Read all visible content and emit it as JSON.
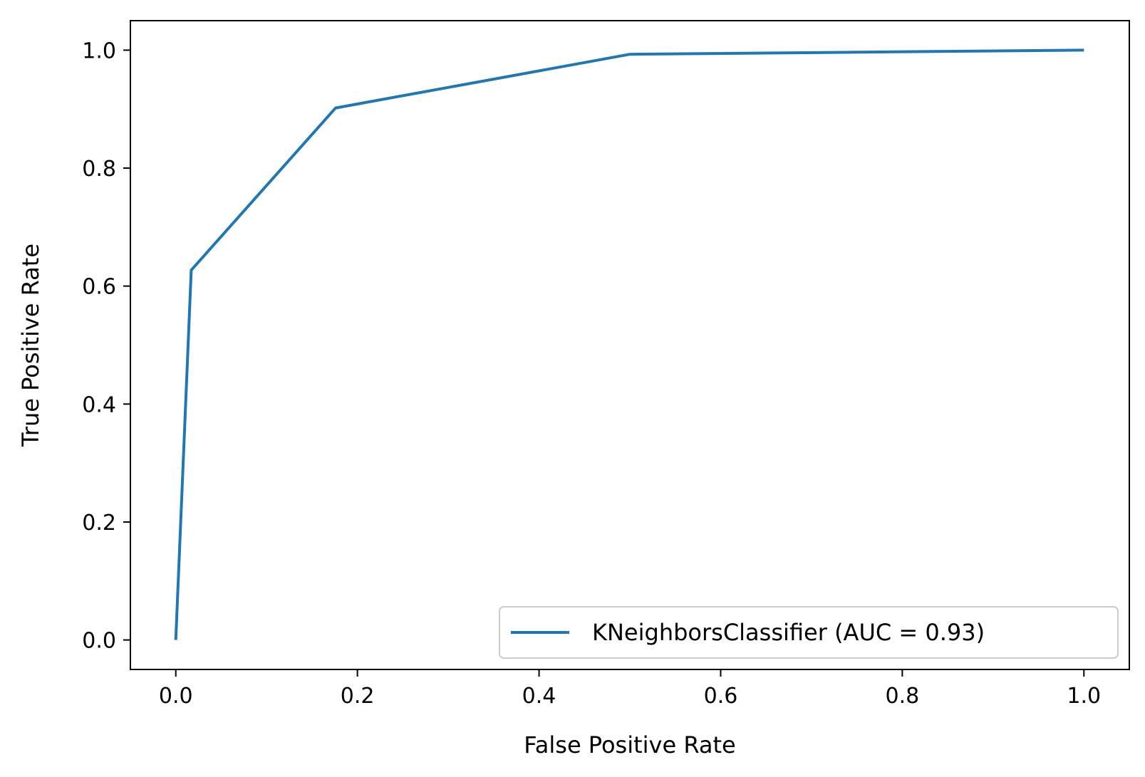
{
  "chart_data": {
    "type": "line",
    "title": "",
    "xlabel": "False Positive Rate",
    "ylabel": "True Positive Rate",
    "xlim": [
      -0.05,
      1.05
    ],
    "ylim": [
      -0.05,
      1.05
    ],
    "xticks": [
      0.0,
      0.2,
      0.4,
      0.6,
      0.8,
      1.0
    ],
    "xtick_labels": [
      "0.0",
      "0.2",
      "0.4",
      "0.6",
      "0.8",
      "1.0"
    ],
    "yticks": [
      0.0,
      0.2,
      0.4,
      0.6,
      0.8,
      1.0
    ],
    "ytick_labels": [
      "0.0",
      "0.2",
      "0.4",
      "0.6",
      "0.8",
      "1.0"
    ],
    "grid": false,
    "legend_position": "lower-right",
    "series": [
      {
        "name": "KNeighborsClassifier (AUC = 0.93)",
        "color": "#1f77b4",
        "x": [
          0.0,
          0.017,
          0.176,
          0.5,
          1.0
        ],
        "y": [
          0.0,
          0.627,
          0.902,
          0.993,
          1.0
        ]
      }
    ]
  }
}
